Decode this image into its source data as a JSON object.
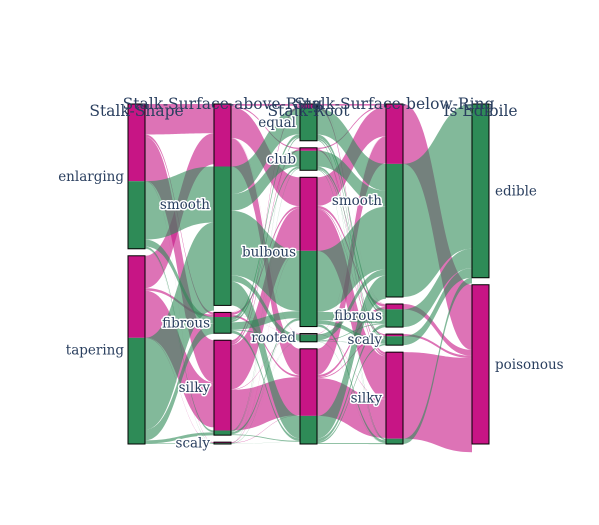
{
  "chart_data": {
    "type": "parallel_categories",
    "colors": {
      "edible": "#2e8b57",
      "poisonous": "#c71585"
    },
    "dimensions": [
      {
        "label": "Stalk-Shape",
        "categories": [
          {
            "label": "enlarging",
            "edible": 1.4,
            "poisonous": 1.6
          },
          {
            "label": "tapering",
            "edible": 2.2,
            "poisonous": 1.7
          }
        ]
      },
      {
        "label": "Stalk-Surface-above-Ring",
        "categories": [
          {
            "label": "smooth",
            "edible": 3.0,
            "poisonous": 1.35
          },
          {
            "label": "fibrous",
            "edible": 0.35,
            "poisonous": 0.1
          },
          {
            "label": "silky",
            "edible": 0.1,
            "poisonous": 1.95
          },
          {
            "label": "scaly",
            "edible": 0.02,
            "poisonous": 0.02
          }
        ]
      },
      {
        "label": "Stalk-Root",
        "categories": [
          {
            "label": "equal",
            "edible": 0.75,
            "poisonous": 0.1
          },
          {
            "label": "club",
            "edible": 0.45,
            "poisonous": 0.07
          },
          {
            "label": "bulbous",
            "edible": 1.75,
            "poisonous": 1.7
          },
          {
            "label": "rooted",
            "edible": 0.17,
            "poisonous": 0.02
          },
          {
            "label": "?",
            "edible": 0.65,
            "poisonous": 1.55
          }
        ]
      },
      {
        "label": "Stalk-Surface-below-Ring",
        "categories": [
          {
            "label": "smooth",
            "edible": 3.0,
            "poisonous": 1.35
          },
          {
            "label": "fibrous",
            "edible": 0.4,
            "poisonous": 0.12
          },
          {
            "label": "scaly",
            "edible": 0.2,
            "poisonous": 0.05
          },
          {
            "label": "silky",
            "edible": 0.12,
            "poisonous": 1.95
          }
        ]
      },
      {
        "label": "Is Edibile",
        "categories": [
          {
            "label": "edible",
            "edible": 3.6,
            "poisonous": 0
          },
          {
            "label": "poisonous",
            "edible": 0,
            "poisonous": 3.3
          }
        ]
      }
    ],
    "categorical_totals": {
      "note_excluded": false
    }
  }
}
